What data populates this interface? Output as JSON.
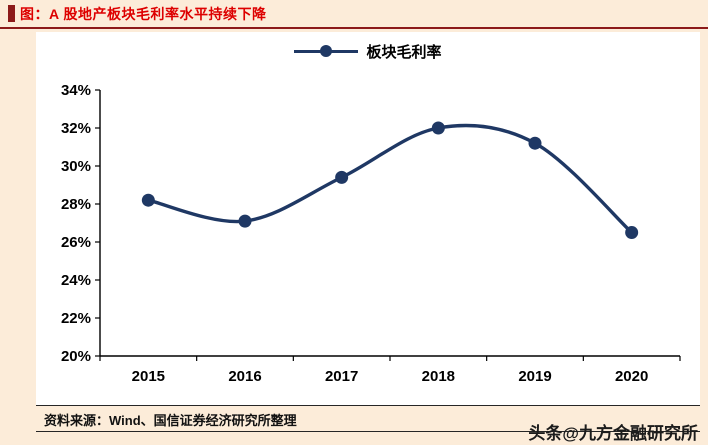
{
  "header": {
    "title": "图：A 股地产板块毛利率水平持续下降",
    "title_color": "#dd0000",
    "accent_color": "#8c1a1a"
  },
  "chart_data": {
    "type": "line",
    "categories": [
      "2015",
      "2016",
      "2017",
      "2018",
      "2019",
      "2020"
    ],
    "series": [
      {
        "name": "板块毛利率",
        "values": [
          28.2,
          27.1,
          29.4,
          32.0,
          31.2,
          26.5
        ]
      }
    ],
    "ylim": [
      20,
      34
    ],
    "ytick_step": 2,
    "ytick_suffix": "%",
    "grid": false,
    "legend_position": "top-center",
    "line_color": "#1f3864",
    "axis_color": "#000000"
  },
  "footer": {
    "source": "资料来源：Wind、国信证券经济研究所整理",
    "watermark": "头条@九方金融研究所"
  }
}
